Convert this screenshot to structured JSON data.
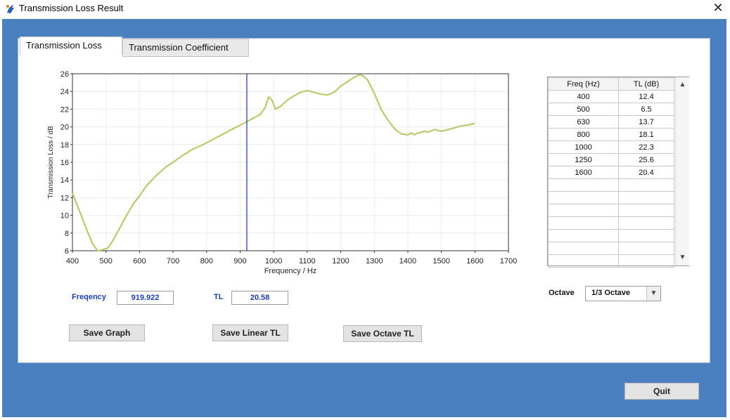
{
  "window": {
    "title": "Transmission Loss Result"
  },
  "tabs": [
    {
      "label": "Transmission Loss",
      "active": true
    },
    {
      "label": "Transmission Coefficient",
      "active": false
    }
  ],
  "chart_data": {
    "type": "line",
    "title": "",
    "xlabel": "Frequency / Hz",
    "ylabel": "Transmission Loss  / dB",
    "xlim": [
      400,
      1700
    ],
    "ylim": [
      6,
      26
    ],
    "xticks": [
      400,
      500,
      600,
      700,
      800,
      900,
      1000,
      1100,
      1200,
      1300,
      1400,
      1500,
      1600,
      1700
    ],
    "yticks": [
      6,
      8,
      10,
      12,
      14,
      16,
      18,
      20,
      22,
      24,
      26
    ],
    "grid": true,
    "colors": {
      "line": "#b5cc6e",
      "cursor": "#1a2fa0"
    },
    "cursor_x": 919.922,
    "series": [
      {
        "x": [
          400,
          420,
          440,
          460,
          475,
          490,
          505,
          520,
          540,
          560,
          580,
          600,
          620,
          650,
          680,
          700,
          730,
          760,
          790,
          820,
          850,
          880,
          900,
          919.9,
          940,
          960,
          975,
          985,
          995,
          1005,
          1020,
          1040,
          1060,
          1080,
          1100,
          1120,
          1140,
          1160,
          1180,
          1200,
          1220,
          1240,
          1255,
          1265,
          1280,
          1300,
          1320,
          1340,
          1360,
          1380,
          1400,
          1410,
          1420,
          1430,
          1440,
          1450,
          1460,
          1480,
          1500,
          1520,
          1540,
          1560,
          1580,
          1600
        ],
        "y": [
          12.5,
          10.6,
          8.6,
          6.8,
          6.0,
          6.1,
          6.3,
          7.1,
          8.5,
          9.9,
          11.2,
          12.2,
          13.3,
          14.5,
          15.5,
          16.0,
          16.8,
          17.5,
          18.0,
          18.6,
          19.2,
          19.8,
          20.2,
          20.58,
          21.0,
          21.4,
          22.2,
          23.4,
          23.0,
          22.0,
          22.3,
          23.0,
          23.5,
          23.9,
          24.1,
          23.9,
          23.7,
          23.6,
          23.9,
          24.6,
          25.1,
          25.6,
          25.9,
          25.8,
          25.3,
          23.8,
          22.0,
          20.8,
          19.8,
          19.2,
          19.1,
          19.3,
          19.1,
          19.3,
          19.4,
          19.5,
          19.4,
          19.7,
          19.5,
          19.7,
          19.9,
          20.1,
          20.2,
          20.4
        ]
      }
    ]
  },
  "cursor_readout": {
    "freq_label": "Freqency",
    "freq_value": "919.922",
    "tl_label": "TL",
    "tl_value": "20.58"
  },
  "buttons": {
    "save_graph": "Save Graph",
    "save_linear": "Save Linear TL",
    "save_octave": "Save Octave TL",
    "quit": "Quit"
  },
  "table": {
    "headers": [
      "Freq (Hz)",
      "TL (dB)"
    ],
    "rows": [
      [
        "400",
        "12.4"
      ],
      [
        "500",
        "6.5"
      ],
      [
        "630",
        "13.7"
      ],
      [
        "800",
        "18.1"
      ],
      [
        "1000",
        "22.3"
      ],
      [
        "1250",
        "25.6"
      ],
      [
        "1600",
        "20.4"
      ],
      [
        "",
        ""
      ],
      [
        "",
        ""
      ],
      [
        "",
        ""
      ],
      [
        "",
        ""
      ],
      [
        "",
        ""
      ],
      [
        "",
        ""
      ],
      [
        "",
        ""
      ]
    ]
  },
  "octave": {
    "label": "Octave",
    "selected": "1/3 Octave"
  }
}
